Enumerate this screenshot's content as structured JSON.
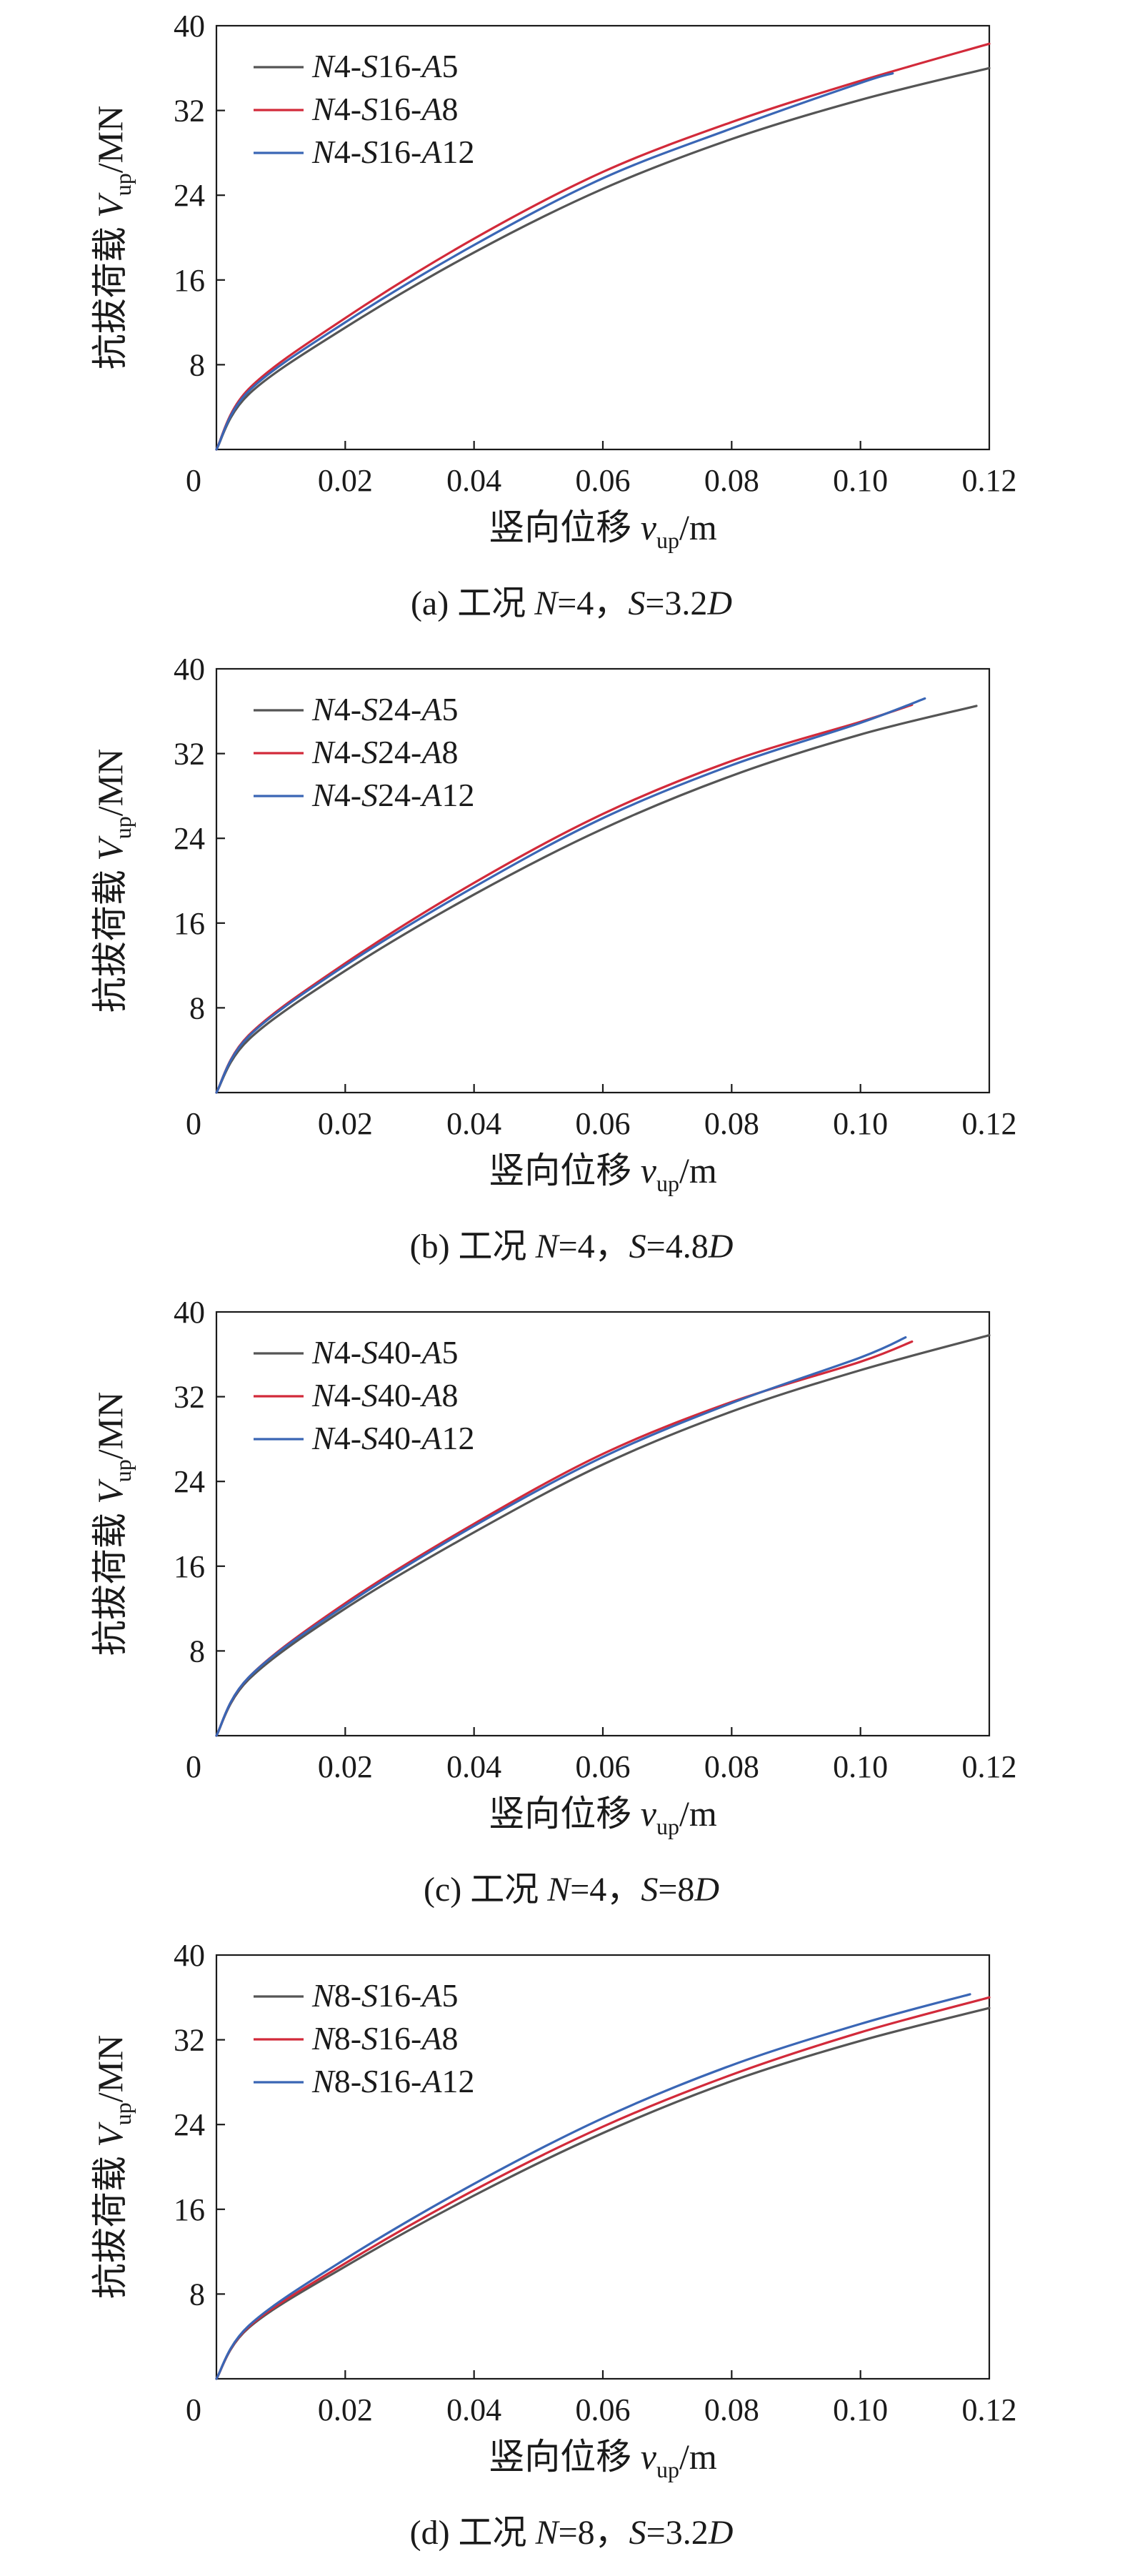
{
  "chart_data": [
    {
      "type": "line",
      "caption": "(a) 工况 N=4，S=3.2D",
      "xlabel": "竖向位移 v_up/m",
      "ylabel": "抗拔荷载 V_up/MN",
      "xlim": [
        0,
        0.12
      ],
      "ylim": [
        0,
        40
      ],
      "xticks": [
        "0",
        "0.02",
        "0.04",
        "0.06",
        "0.08",
        "0.10",
        "0.12"
      ],
      "yticks": [
        "8",
        "16",
        "24",
        "32",
        "40"
      ],
      "legend_position": "top-left",
      "series": [
        {
          "name": "N4-S16-A5",
          "color": "#555555",
          "x": [
            0,
            0.005,
            0.02,
            0.04,
            0.06,
            0.08,
            0.1,
            0.12
          ],
          "y": [
            0,
            5.2,
            11.5,
            18.6,
            24.6,
            29.3,
            33.0,
            36.0
          ]
        },
        {
          "name": "N4-S16-A8",
          "color": "#d22a3a",
          "x": [
            0,
            0.005,
            0.02,
            0.04,
            0.06,
            0.08,
            0.1,
            0.12
          ],
          "y": [
            0,
            5.7,
            12.4,
            19.9,
            26.2,
            30.9,
            34.8,
            38.3
          ]
        },
        {
          "name": "N4-S16-A12",
          "color": "#3a66b5",
          "x": [
            0,
            0.005,
            0.02,
            0.04,
            0.06,
            0.08,
            0.1,
            0.105
          ],
          "y": [
            0,
            5.5,
            12.0,
            19.3,
            25.6,
            30.3,
            34.6,
            35.5
          ]
        }
      ]
    },
    {
      "type": "line",
      "caption": "(b) 工况 N=4，S=4.8D",
      "xlabel": "竖向位移 v_up/m",
      "ylabel": "抗拔荷载 V_up/MN",
      "xlim": [
        0,
        0.12
      ],
      "ylim": [
        0,
        40
      ],
      "xticks": [
        "0",
        "0.02",
        "0.04",
        "0.06",
        "0.08",
        "0.10",
        "0.12"
      ],
      "yticks": [
        "8",
        "16",
        "24",
        "32",
        "40"
      ],
      "legend_position": "top-left",
      "series": [
        {
          "name": "N4-S24-A5",
          "color": "#555555",
          "x": [
            0,
            0.005,
            0.02,
            0.04,
            0.06,
            0.08,
            0.1,
            0.118
          ],
          "y": [
            0,
            5.0,
            11.5,
            18.7,
            24.9,
            29.9,
            33.8,
            36.5
          ]
        },
        {
          "name": "N4-S24-A8",
          "color": "#d22a3a",
          "x": [
            0,
            0.005,
            0.02,
            0.04,
            0.06,
            0.08,
            0.1,
            0.108
          ],
          "y": [
            0,
            5.4,
            12.2,
            19.8,
            26.3,
            31.3,
            35.0,
            36.6
          ]
        },
        {
          "name": "N4-S24-A12",
          "color": "#3a66b5",
          "x": [
            0,
            0.005,
            0.02,
            0.04,
            0.06,
            0.08,
            0.1,
            0.11
          ],
          "y": [
            0,
            5.3,
            12.0,
            19.4,
            25.9,
            30.9,
            34.9,
            37.2
          ]
        }
      ]
    },
    {
      "type": "line",
      "caption": "(c) 工况 N=4，S=8D",
      "xlabel": "竖向位移 v_up/m",
      "ylabel": "抗拔荷载 V_up/MN",
      "xlim": [
        0,
        0.12
      ],
      "ylim": [
        0,
        40
      ],
      "xticks": [
        "0",
        "0.02",
        "0.04",
        "0.06",
        "0.08",
        "0.10",
        "0.12"
      ],
      "yticks": [
        "8",
        "16",
        "24",
        "32",
        "40"
      ],
      "legend_position": "top-left",
      "series": [
        {
          "name": "N4-S40-A5",
          "color": "#555555",
          "x": [
            0,
            0.005,
            0.02,
            0.04,
            0.06,
            0.08,
            0.1,
            0.12
          ],
          "y": [
            0,
            5.3,
            12.0,
            19.2,
            25.6,
            30.6,
            34.5,
            37.8
          ]
        },
        {
          "name": "N4-S40-A8",
          "color": "#d22a3a",
          "x": [
            0,
            0.005,
            0.02,
            0.04,
            0.06,
            0.08,
            0.1,
            0.108
          ],
          "y": [
            0,
            5.5,
            12.5,
            20.0,
            26.6,
            31.5,
            35.3,
            37.2
          ]
        },
        {
          "name": "N4-S40-A12",
          "color": "#3a66b5",
          "x": [
            0,
            0.005,
            0.02,
            0.04,
            0.06,
            0.08,
            0.1,
            0.107
          ],
          "y": [
            0,
            5.5,
            12.3,
            19.8,
            26.3,
            31.4,
            35.7,
            37.6
          ]
        }
      ]
    },
    {
      "type": "line",
      "caption": "(d) 工况 N=8，S=3.2D",
      "xlabel": "竖向位移 v_up/m",
      "ylabel": "抗拔荷载 V_up/MN",
      "xlim": [
        0,
        0.12
      ],
      "ylim": [
        0,
        40
      ],
      "xticks": [
        "0",
        "0.02",
        "0.04",
        "0.06",
        "0.08",
        "0.10",
        "0.12"
      ],
      "yticks": [
        "8",
        "16",
        "24",
        "32",
        "40"
      ],
      "legend_position": "top-left",
      "series": [
        {
          "name": "N8-S16-A5",
          "color": "#555555",
          "x": [
            0,
            0.005,
            0.02,
            0.04,
            0.06,
            0.08,
            0.1,
            0.12
          ],
          "y": [
            0,
            4.8,
            10.6,
            17.3,
            23.2,
            28.1,
            31.9,
            35.0
          ]
        },
        {
          "name": "N8-S16-A8",
          "color": "#d22a3a",
          "x": [
            0,
            0.005,
            0.02,
            0.04,
            0.06,
            0.08,
            0.1,
            0.12
          ],
          "y": [
            0,
            4.9,
            10.9,
            17.8,
            23.8,
            28.7,
            32.7,
            36.0
          ]
        },
        {
          "name": "N8-S16-A12",
          "color": "#3a66b5",
          "x": [
            0,
            0.005,
            0.02,
            0.04,
            0.06,
            0.08,
            0.1,
            0.117
          ],
          "y": [
            0,
            5.0,
            11.3,
            18.4,
            24.6,
            29.6,
            33.5,
            36.3
          ]
        }
      ]
    }
  ]
}
